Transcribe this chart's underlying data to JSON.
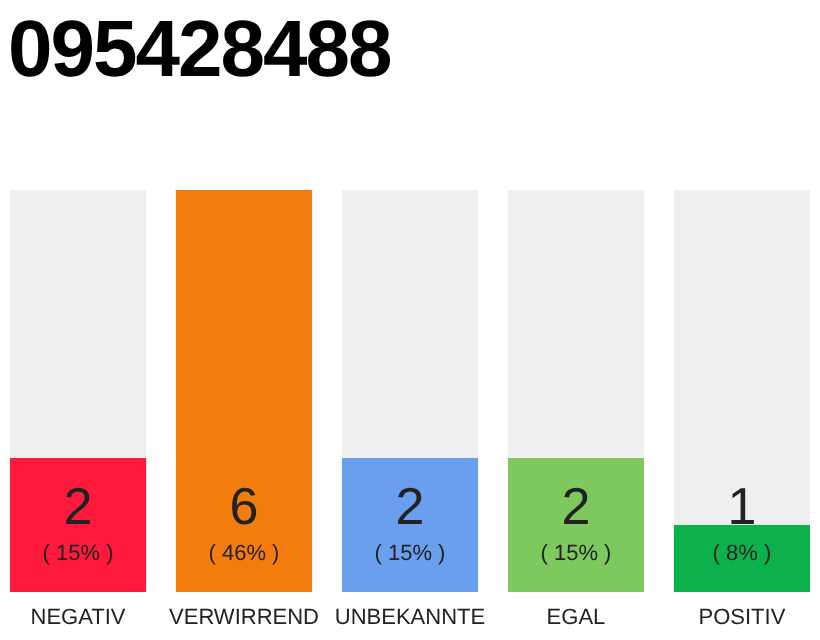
{
  "chart_data": {
    "type": "bar",
    "title": "095428488",
    "categories": [
      "NEGATIV",
      "VERWIRREND",
      "UNBEKANNTE",
      "EGAL",
      "POSITIV"
    ],
    "values": [
      2,
      6,
      2,
      2,
      1
    ],
    "colors": [
      "#ff1a3c",
      "#f47c0c",
      "#6a9ff0",
      "#7dc95e",
      "#0db14b"
    ],
    "data_labels": true,
    "annotations": [
      "( 15% )",
      "( 46% )",
      "( 15% )",
      "( 15% )",
      "( 8% )"
    ]
  }
}
